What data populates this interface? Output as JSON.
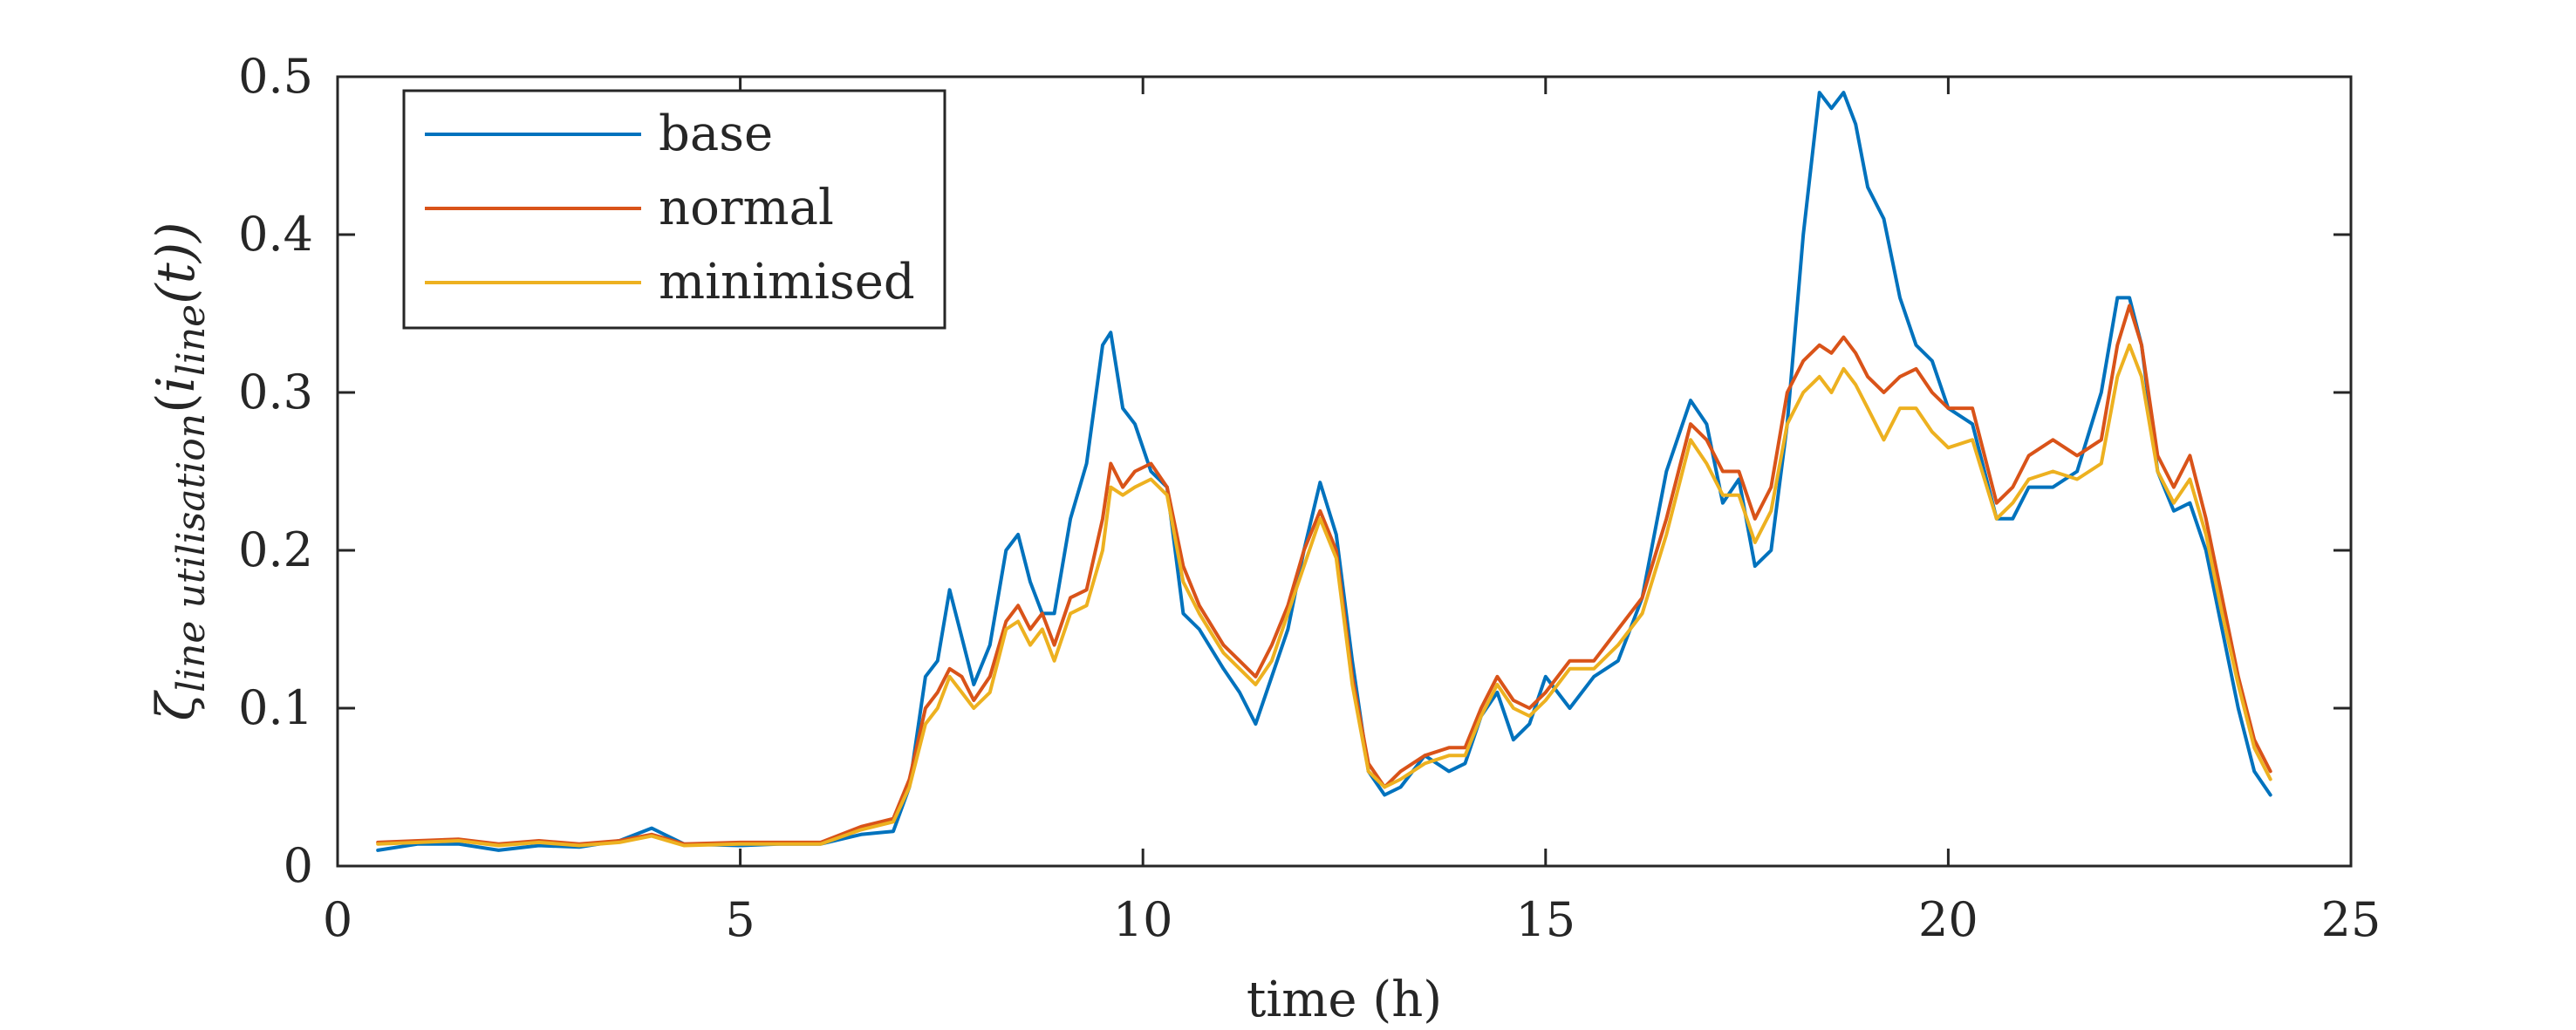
{
  "chart_data": {
    "type": "line",
    "xlabel": "time (h)",
    "ylabel": {
      "zeta": "ζ",
      "zeta_sub": "line utilisation",
      "arg_open": "(",
      "i": "i",
      "i_sub": "line",
      "arg_rest": "(t))"
    },
    "xlim": [
      0,
      25
    ],
    "ylim": [
      0,
      0.5
    ],
    "xticks": [
      0,
      5,
      10,
      15,
      20,
      25
    ],
    "xtick_labels": [
      "0",
      "5",
      "10",
      "15",
      "20",
      "25"
    ],
    "yticks": [
      0,
      0.1,
      0.2,
      0.3,
      0.4,
      0.5
    ],
    "ytick_labels": [
      "0",
      "0.1",
      "0.2",
      "0.3",
      "0.4",
      "0.5"
    ],
    "grid": false,
    "legend_position": "top-left",
    "series": [
      {
        "name": "base",
        "color": "#0072BD",
        "x": [
          0.5,
          1,
          1.5,
          2,
          2.5,
          3,
          3.5,
          3.9,
          4.3,
          5,
          5.5,
          6,
          6.5,
          6.9,
          7.1,
          7.3,
          7.45,
          7.6,
          7.75,
          7.9,
          8.1,
          8.3,
          8.45,
          8.6,
          8.75,
          8.9,
          9.1,
          9.3,
          9.5,
          9.6,
          9.75,
          9.9,
          10.1,
          10.3,
          10.5,
          10.7,
          11,
          11.2,
          11.4,
          11.6,
          11.8,
          12.0,
          12.2,
          12.4,
          12.6,
          12.8,
          13.0,
          13.2,
          13.5,
          13.8,
          14.0,
          14.2,
          14.4,
          14.6,
          14.8,
          15.0,
          15.3,
          15.6,
          15.9,
          16.2,
          16.5,
          16.8,
          17.0,
          17.2,
          17.4,
          17.6,
          17.8,
          18.0,
          18.2,
          18.4,
          18.55,
          18.7,
          18.85,
          19.0,
          19.2,
          19.4,
          19.6,
          19.8,
          20.0,
          20.3,
          20.6,
          20.8,
          21.0,
          21.3,
          21.6,
          21.9,
          22.1,
          22.25,
          22.4,
          22.6,
          22.8,
          23.0,
          23.2,
          23.4,
          23.6,
          23.8,
          24.0
        ],
        "values": [
          0.01,
          0.014,
          0.014,
          0.01,
          0.013,
          0.012,
          0.016,
          0.024,
          0.014,
          0.013,
          0.014,
          0.014,
          0.02,
          0.022,
          0.05,
          0.12,
          0.13,
          0.175,
          0.145,
          0.115,
          0.14,
          0.2,
          0.21,
          0.18,
          0.16,
          0.16,
          0.22,
          0.255,
          0.33,
          0.338,
          0.29,
          0.28,
          0.25,
          0.24,
          0.16,
          0.15,
          0.125,
          0.11,
          0.09,
          0.12,
          0.15,
          0.2,
          0.243,
          0.21,
          0.13,
          0.06,
          0.045,
          0.05,
          0.07,
          0.06,
          0.065,
          0.095,
          0.11,
          0.08,
          0.09,
          0.12,
          0.1,
          0.12,
          0.13,
          0.17,
          0.25,
          0.295,
          0.28,
          0.23,
          0.245,
          0.19,
          0.2,
          0.28,
          0.4,
          0.49,
          0.48,
          0.49,
          0.47,
          0.43,
          0.41,
          0.36,
          0.33,
          0.32,
          0.29,
          0.28,
          0.22,
          0.22,
          0.24,
          0.24,
          0.25,
          0.3,
          0.36,
          0.36,
          0.33,
          0.25,
          0.225,
          0.23,
          0.2,
          0.15,
          0.1,
          0.06,
          0.045
        ]
      },
      {
        "name": "normal",
        "color": "#D95319",
        "x": [
          0.5,
          1,
          1.5,
          2,
          2.5,
          3,
          3.5,
          3.9,
          4.3,
          5,
          5.5,
          6,
          6.5,
          6.9,
          7.1,
          7.3,
          7.45,
          7.6,
          7.75,
          7.9,
          8.1,
          8.3,
          8.45,
          8.6,
          8.75,
          8.9,
          9.1,
          9.3,
          9.5,
          9.6,
          9.75,
          9.9,
          10.1,
          10.3,
          10.5,
          10.7,
          11,
          11.2,
          11.4,
          11.6,
          11.8,
          12.0,
          12.2,
          12.4,
          12.6,
          12.8,
          13.0,
          13.2,
          13.5,
          13.8,
          14.0,
          14.2,
          14.4,
          14.6,
          14.8,
          15.0,
          15.3,
          15.6,
          15.9,
          16.2,
          16.5,
          16.8,
          17.0,
          17.2,
          17.4,
          17.6,
          17.8,
          18.0,
          18.2,
          18.4,
          18.55,
          18.7,
          18.85,
          19.0,
          19.2,
          19.4,
          19.6,
          19.8,
          20.0,
          20.3,
          20.6,
          20.8,
          21.0,
          21.3,
          21.6,
          21.9,
          22.1,
          22.25,
          22.4,
          22.6,
          22.8,
          23.0,
          23.2,
          23.4,
          23.6,
          23.8,
          24.0
        ],
        "values": [
          0.015,
          0.016,
          0.017,
          0.014,
          0.016,
          0.014,
          0.016,
          0.02,
          0.014,
          0.015,
          0.015,
          0.015,
          0.025,
          0.03,
          0.055,
          0.1,
          0.11,
          0.125,
          0.12,
          0.105,
          0.12,
          0.155,
          0.165,
          0.15,
          0.16,
          0.14,
          0.17,
          0.175,
          0.22,
          0.255,
          0.24,
          0.25,
          0.255,
          0.24,
          0.19,
          0.165,
          0.14,
          0.13,
          0.12,
          0.14,
          0.165,
          0.2,
          0.225,
          0.2,
          0.12,
          0.065,
          0.05,
          0.06,
          0.07,
          0.075,
          0.075,
          0.1,
          0.12,
          0.105,
          0.1,
          0.11,
          0.13,
          0.13,
          0.15,
          0.17,
          0.22,
          0.28,
          0.27,
          0.25,
          0.25,
          0.22,
          0.24,
          0.3,
          0.32,
          0.33,
          0.325,
          0.335,
          0.325,
          0.31,
          0.3,
          0.31,
          0.315,
          0.3,
          0.29,
          0.29,
          0.23,
          0.24,
          0.26,
          0.27,
          0.26,
          0.27,
          0.33,
          0.355,
          0.33,
          0.26,
          0.24,
          0.26,
          0.22,
          0.17,
          0.12,
          0.08,
          0.06
        ]
      },
      {
        "name": "minimised",
        "color": "#EDB120",
        "x": [
          0.5,
          1,
          1.5,
          2,
          2.5,
          3,
          3.5,
          3.9,
          4.3,
          5,
          5.5,
          6,
          6.5,
          6.9,
          7.1,
          7.3,
          7.45,
          7.6,
          7.75,
          7.9,
          8.1,
          8.3,
          8.45,
          8.6,
          8.75,
          8.9,
          9.1,
          9.3,
          9.5,
          9.6,
          9.75,
          9.9,
          10.1,
          10.3,
          10.5,
          10.7,
          11,
          11.2,
          11.4,
          11.6,
          11.8,
          12.0,
          12.2,
          12.4,
          12.6,
          12.8,
          13.0,
          13.2,
          13.5,
          13.8,
          14.0,
          14.2,
          14.4,
          14.6,
          14.8,
          15.0,
          15.3,
          15.6,
          15.9,
          16.2,
          16.5,
          16.8,
          17.0,
          17.2,
          17.4,
          17.6,
          17.8,
          18.0,
          18.2,
          18.4,
          18.55,
          18.7,
          18.85,
          19.0,
          19.2,
          19.4,
          19.6,
          19.8,
          20.0,
          20.3,
          20.6,
          20.8,
          21.0,
          21.3,
          21.6,
          21.9,
          22.1,
          22.25,
          22.4,
          22.6,
          22.8,
          23.0,
          23.2,
          23.4,
          23.6,
          23.8,
          24.0
        ],
        "values": [
          0.014,
          0.015,
          0.016,
          0.013,
          0.015,
          0.013,
          0.015,
          0.019,
          0.013,
          0.014,
          0.014,
          0.014,
          0.023,
          0.028,
          0.05,
          0.09,
          0.1,
          0.12,
          0.11,
          0.1,
          0.11,
          0.15,
          0.155,
          0.14,
          0.15,
          0.13,
          0.16,
          0.165,
          0.2,
          0.24,
          0.235,
          0.24,
          0.245,
          0.235,
          0.18,
          0.16,
          0.135,
          0.125,
          0.115,
          0.13,
          0.16,
          0.19,
          0.22,
          0.195,
          0.115,
          0.06,
          0.05,
          0.055,
          0.065,
          0.07,
          0.07,
          0.095,
          0.115,
          0.1,
          0.095,
          0.105,
          0.125,
          0.125,
          0.14,
          0.16,
          0.21,
          0.27,
          0.255,
          0.235,
          0.235,
          0.205,
          0.225,
          0.28,
          0.3,
          0.31,
          0.3,
          0.315,
          0.305,
          0.29,
          0.27,
          0.29,
          0.29,
          0.275,
          0.265,
          0.27,
          0.22,
          0.23,
          0.245,
          0.25,
          0.245,
          0.255,
          0.31,
          0.33,
          0.31,
          0.25,
          0.23,
          0.245,
          0.21,
          0.16,
          0.115,
          0.075,
          0.055
        ]
      }
    ]
  }
}
